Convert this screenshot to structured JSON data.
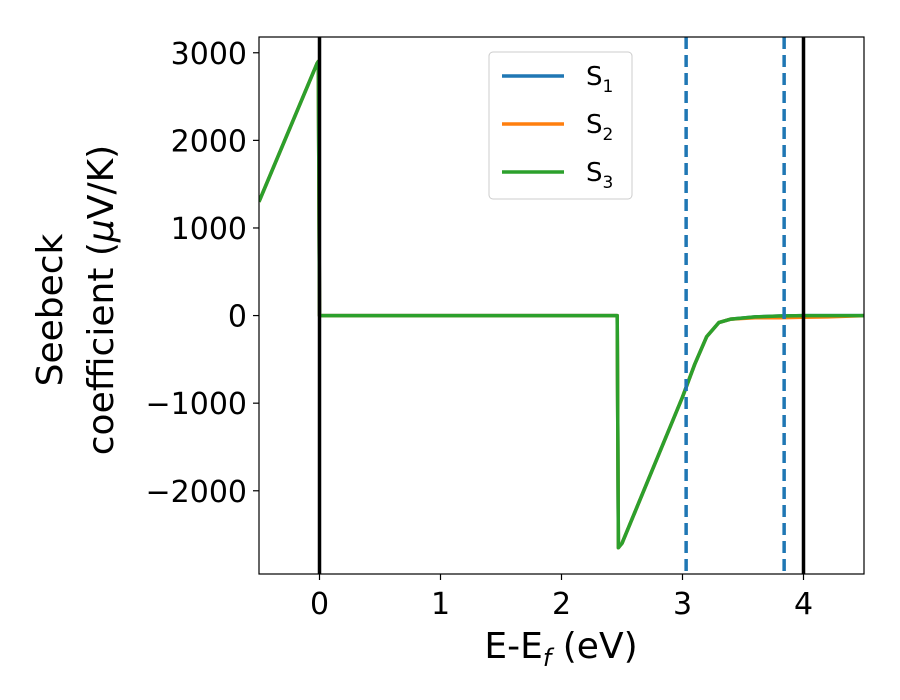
{
  "chart_data": {
    "type": "line",
    "xlabel_parts": {
      "main": "E-E",
      "sub": "f",
      "tail": " (eV)"
    },
    "ylabel_line1": "Seebeck",
    "ylabel_line2_parts": {
      "main": "coefficient  (",
      "italic": "μ",
      "tail": "V/K)"
    },
    "xlim": [
      -0.5,
      4.5
    ],
    "ylim": [
      -2950,
      3180
    ],
    "xticks": [
      0,
      1,
      2,
      3,
      4
    ],
    "xtick_labels": [
      "0",
      "1",
      "2",
      "3",
      "4"
    ],
    "yticks": [
      -2000,
      -1000,
      0,
      1000,
      2000,
      3000
    ],
    "ytick_labels": [
      "−2000",
      "−1000",
      "0",
      "1000",
      "2000",
      "3000"
    ],
    "grid": false,
    "legend_position": "top-center",
    "series": [
      {
        "name": "S1",
        "label_main": "S",
        "label_sub": "1",
        "color": "#1f77b4",
        "x": [
          -0.5,
          -0.02,
          -0.01,
          0.0,
          2.45,
          2.46,
          2.47,
          2.5,
          3.0,
          3.1,
          3.2,
          3.3,
          3.4,
          3.6,
          3.8,
          4.0,
          4.5
        ],
        "y": [
          1300,
          2880,
          2900,
          0,
          0,
          0,
          -2650,
          -2600,
          -930,
          -560,
          -240,
          -80,
          -40,
          -15,
          -5,
          0,
          0
        ]
      },
      {
        "name": "S2",
        "label_main": "S",
        "label_sub": "2",
        "color": "#ff7f0e",
        "x": [
          -0.5,
          -0.02,
          -0.01,
          0.0,
          2.45,
          2.46,
          2.47,
          2.5,
          3.0,
          3.1,
          3.2,
          3.3,
          3.4,
          3.6,
          3.8,
          4.0,
          4.2,
          4.5
        ],
        "y": [
          1300,
          2880,
          2900,
          0,
          0,
          0,
          -2650,
          -2600,
          -930,
          -560,
          -240,
          -80,
          -40,
          -25,
          -25,
          -20,
          -15,
          0
        ]
      },
      {
        "name": "S3",
        "label_main": "S",
        "label_sub": "3",
        "color": "#2ca02c",
        "x": [
          -0.5,
          -0.02,
          -0.01,
          0.0,
          2.45,
          2.46,
          2.47,
          2.5,
          3.0,
          3.1,
          3.2,
          3.3,
          3.4,
          3.6,
          3.8,
          4.0,
          4.5
        ],
        "y": [
          1300,
          2880,
          2900,
          0,
          0,
          0,
          -2650,
          -2600,
          -930,
          -560,
          -240,
          -80,
          -40,
          -15,
          -5,
          0,
          0
        ]
      }
    ],
    "vertical_lines": [
      {
        "x": 0.0,
        "style": "solid",
        "color": "#000000"
      },
      {
        "x": 4.0,
        "style": "solid",
        "color": "#000000"
      },
      {
        "x": 3.03,
        "style": "dashed",
        "color": "#1f77b4"
      },
      {
        "x": 3.84,
        "style": "dashed",
        "color": "#1f77b4"
      }
    ]
  }
}
